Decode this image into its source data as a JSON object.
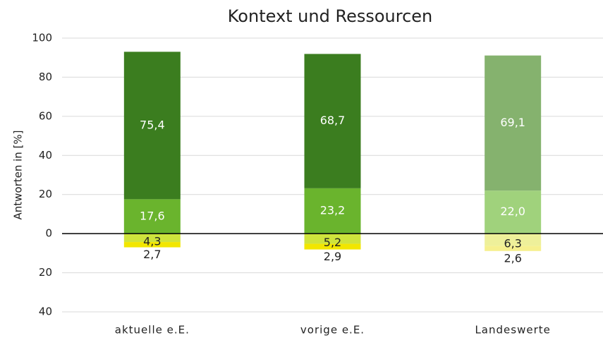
{
  "chart_data": {
    "type": "diverging-stacked-bar",
    "title": "Kontext und Ressourcen",
    "y_label": "Antworten in [%]",
    "categories": [
      "aktuelle e.E.",
      "vorige e.E.",
      "Landeswerte"
    ],
    "series": [
      {
        "values": [
          17.6,
          23.2,
          22.0
        ],
        "value_labels": [
          "17,6",
          "23,2",
          "22,0"
        ],
        "colors": [
          "#6ab42d",
          "#6ab42d",
          "#a0d27c"
        ],
        "label_color": "#ffffff"
      },
      {
        "values": [
          75.4,
          68.7,
          69.1
        ],
        "value_labels": [
          "75,4",
          "68,7",
          "69,1"
        ],
        "colors": [
          "#3b7d1f",
          "#3b7d1f",
          "#85b26e"
        ],
        "label_color": "#ffffff"
      },
      {
        "values": [
          -4.3,
          -5.2,
          -6.3
        ],
        "value_labels": [
          "4,3",
          "5,2",
          "6,3"
        ],
        "colors": [
          "#cfe43c",
          "#cfe43c",
          "#eef09a"
        ],
        "label_color": "#222222"
      },
      {
        "values": [
          -2.7,
          -2.9,
          -2.6
        ],
        "value_labels": [
          "2,7",
          "2,9",
          "2,6"
        ],
        "colors": [
          "#f2e600",
          "#f2e600",
          "#f6f08e"
        ],
        "label_color": "#222222"
      }
    ],
    "ylim": [
      -40,
      100
    ],
    "yticks": [
      {
        "value": -40,
        "label": "40"
      },
      {
        "value": -20,
        "label": "20"
      },
      0,
      20,
      40,
      60,
      80,
      100
    ],
    "grid": true
  }
}
